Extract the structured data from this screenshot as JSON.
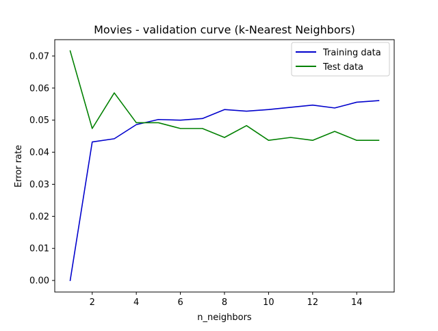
{
  "chart_data": {
    "type": "line",
    "title": "Movies - validation curve (k-Nearest Neighbors)",
    "xlabel": "n_neighbors",
    "ylabel": "Error rate",
    "x": [
      1,
      2,
      3,
      4,
      5,
      6,
      7,
      8,
      9,
      10,
      11,
      12,
      13,
      14,
      15
    ],
    "xlim": [
      0.3,
      15.7
    ],
    "ylim": [
      -0.0036,
      0.0751
    ],
    "x_ticks": [
      2,
      4,
      6,
      8,
      10,
      12,
      14
    ],
    "x_tick_labels": [
      "2",
      "4",
      "6",
      "8",
      "10",
      "12",
      "14"
    ],
    "y_ticks": [
      0.0,
      0.01,
      0.02,
      0.03,
      0.04,
      0.05,
      0.06,
      0.07
    ],
    "y_tick_labels": [
      "0.00",
      "0.01",
      "0.02",
      "0.03",
      "0.04",
      "0.05",
      "0.06",
      "0.07"
    ],
    "grid": false,
    "legend_position": "top-right",
    "series": [
      {
        "name": "Training data",
        "color": "#0000cc",
        "values": [
          0.0,
          0.0432,
          0.0442,
          0.0486,
          0.0502,
          0.05,
          0.0505,
          0.0533,
          0.0528,
          0.0533,
          0.054,
          0.0547,
          0.0538,
          0.0556,
          0.0561
        ]
      },
      {
        "name": "Test data",
        "color": "#008000",
        "values": [
          0.0716,
          0.0474,
          0.0585,
          0.0492,
          0.0492,
          0.0474,
          0.0474,
          0.0446,
          0.0483,
          0.0437,
          0.0446,
          0.0437,
          0.0465,
          0.0437,
          0.0437
        ]
      }
    ]
  }
}
